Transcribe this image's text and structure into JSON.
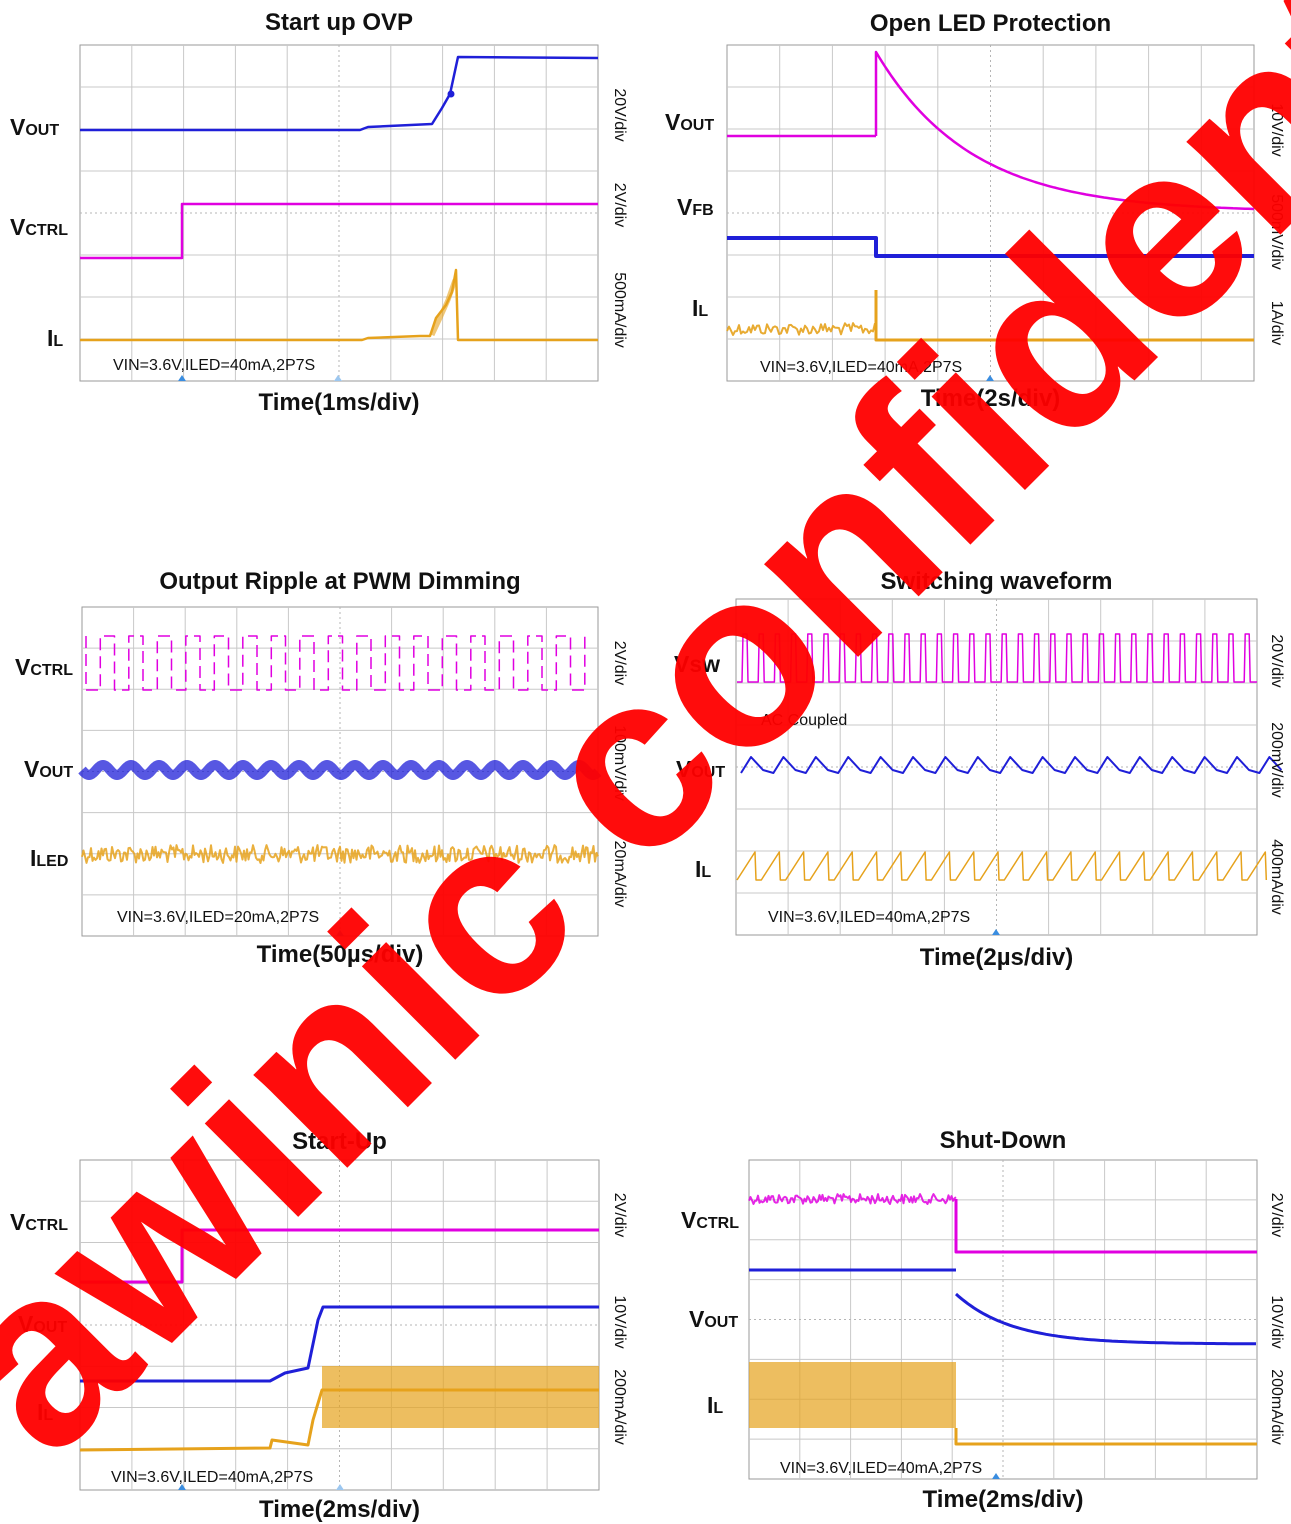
{
  "watermark": {
    "text": "awinic confidential",
    "color": "#ff0000"
  },
  "colors": {
    "magenta": "#e000e0",
    "blue": "#1f1fd8",
    "orange": "#e6a21c",
    "grid": "#c8c8c8",
    "trigger": "#3a8de0"
  },
  "chart_data": [
    {
      "type": "line",
      "title": "Start up OVP",
      "xlabel": "Time(1ms/div)",
      "condition": "VIN=3.6V,ILED=40mA,2P7S",
      "scales": [
        "20V/div",
        "2V/div",
        "500mA/div"
      ],
      "series": [
        {
          "name": "VOUT",
          "label_main": "V",
          "label_sub": "OUT",
          "color": "blue"
        },
        {
          "name": "VCTRL",
          "label_main": "V",
          "label_sub": "CTRL",
          "color": "magenta"
        },
        {
          "name": "IL",
          "label_main": "I",
          "label_sub": "L",
          "color": "orange"
        }
      ]
    },
    {
      "type": "line",
      "title": "Open LED Protection",
      "xlabel": "Time(2s/div)",
      "condition": "VIN=3.6V,ILED=40mA,2P7S",
      "scales": [
        "10V/div",
        "500mV/div",
        "1A/div"
      ],
      "series": [
        {
          "name": "VOUT",
          "label_main": "V",
          "label_sub": "OUT",
          "color": "magenta"
        },
        {
          "name": "VFB",
          "label_main": "V",
          "label_sub": "FB",
          "color": "blue"
        },
        {
          "name": "IL",
          "label_main": "I",
          "label_sub": "L",
          "color": "orange"
        }
      ]
    },
    {
      "type": "line",
      "title": "Output Ripple at PWM Dimming",
      "xlabel": "Time(50µs/div)",
      "condition": "VIN=3.6V,ILED=20mA,2P7S",
      "scales": [
        "2V/div",
        "100mV/div",
        "20mA/div"
      ],
      "series": [
        {
          "name": "VCTRL",
          "label_main": "V",
          "label_sub": "CTRL",
          "color": "magenta"
        },
        {
          "name": "VOUT",
          "label_main": "V",
          "label_sub": "OUT",
          "color": "blue"
        },
        {
          "name": "ILED",
          "label_main": "I",
          "label_sub": "LED",
          "color": "orange"
        }
      ]
    },
    {
      "type": "line",
      "title": "Switching waveform",
      "xlabel": "Time(2µs/div)",
      "condition": "VIN=3.6V,ILED=40mA,2P7S",
      "annotation": "AC Coupled",
      "scales": [
        "20V/div",
        "200mV/div",
        "400mA/div"
      ],
      "series": [
        {
          "name": "Vsw",
          "label_main": "Vsw",
          "label_sub": "",
          "color": "magenta"
        },
        {
          "name": "VOUT",
          "label_main": "V",
          "label_sub": "OUT",
          "color": "blue"
        },
        {
          "name": "IL",
          "label_main": "I",
          "label_sub": "L",
          "color": "orange"
        }
      ]
    },
    {
      "type": "line",
      "title": "Start-Up",
      "xlabel": "Time(2ms/div)",
      "condition": "VIN=3.6V,ILED=40mA,2P7S",
      "scales": [
        "2V/div",
        "10V/div",
        "200mA/div"
      ],
      "series": [
        {
          "name": "VCTRL",
          "label_main": "V",
          "label_sub": "CTRL",
          "color": "magenta"
        },
        {
          "name": "VOUT",
          "label_main": "V",
          "label_sub": "OUT",
          "color": "blue"
        },
        {
          "name": "IL",
          "label_main": "I",
          "label_sub": "L",
          "color": "orange"
        }
      ]
    },
    {
      "type": "line",
      "title": "Shut-Down",
      "xlabel": "Time(2ms/div)",
      "condition": "VIN=3.6V,ILED=40mA,2P7S",
      "scales": [
        "2V/div",
        "10V/div",
        "200mA/div"
      ],
      "series": [
        {
          "name": "VCTRL",
          "label_main": "V",
          "label_sub": "CTRL",
          "color": "magenta"
        },
        {
          "name": "VOUT",
          "label_main": "V",
          "label_sub": "OUT",
          "color": "blue"
        },
        {
          "name": "IL",
          "label_main": "I",
          "label_sub": "L",
          "color": "orange"
        }
      ]
    }
  ]
}
